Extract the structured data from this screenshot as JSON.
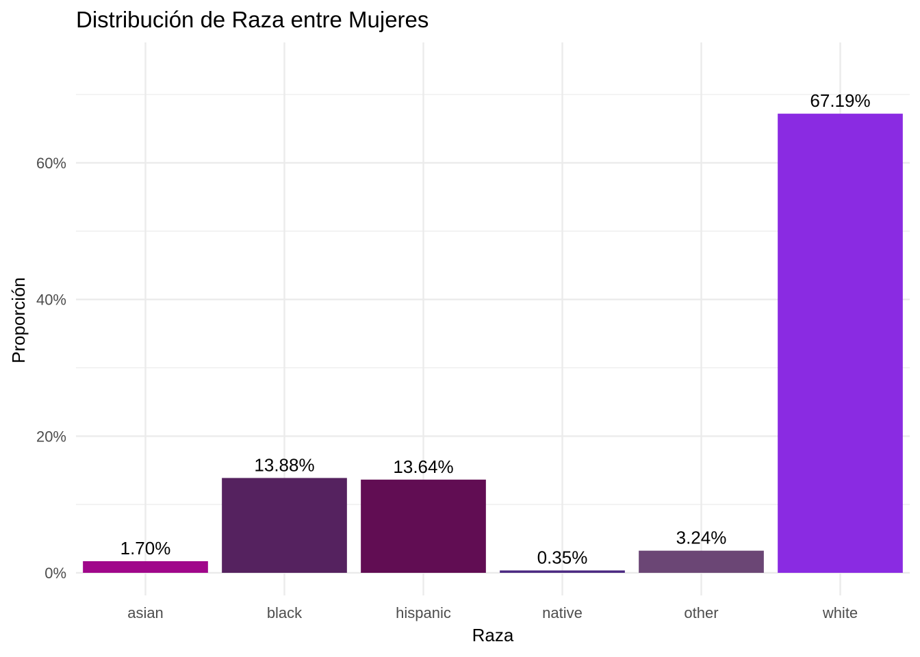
{
  "chart_data": {
    "type": "bar",
    "title": "Distribución de Raza entre Mujeres",
    "xlabel": "Raza",
    "ylabel": "Proporción",
    "categories": [
      "asian",
      "black",
      "hispanic",
      "native",
      "other",
      "white"
    ],
    "values": [
      1.7,
      13.88,
      13.64,
      0.35,
      3.24,
      67.19
    ],
    "value_labels": [
      "1.70%",
      "13.88%",
      "13.64%",
      "0.35%",
      "3.24%",
      "67.19%"
    ],
    "colors": [
      "#A0078A",
      "#55225F",
      "#610D53",
      "#4C2A82",
      "#6B4675",
      "#8A2BE2"
    ],
    "yticks": [
      0,
      20,
      40,
      60
    ],
    "ytick_labels": [
      "0%",
      "20%",
      "40%",
      "60%"
    ],
    "ylim": [
      -3,
      70
    ],
    "grid": true,
    "legend": "none"
  }
}
